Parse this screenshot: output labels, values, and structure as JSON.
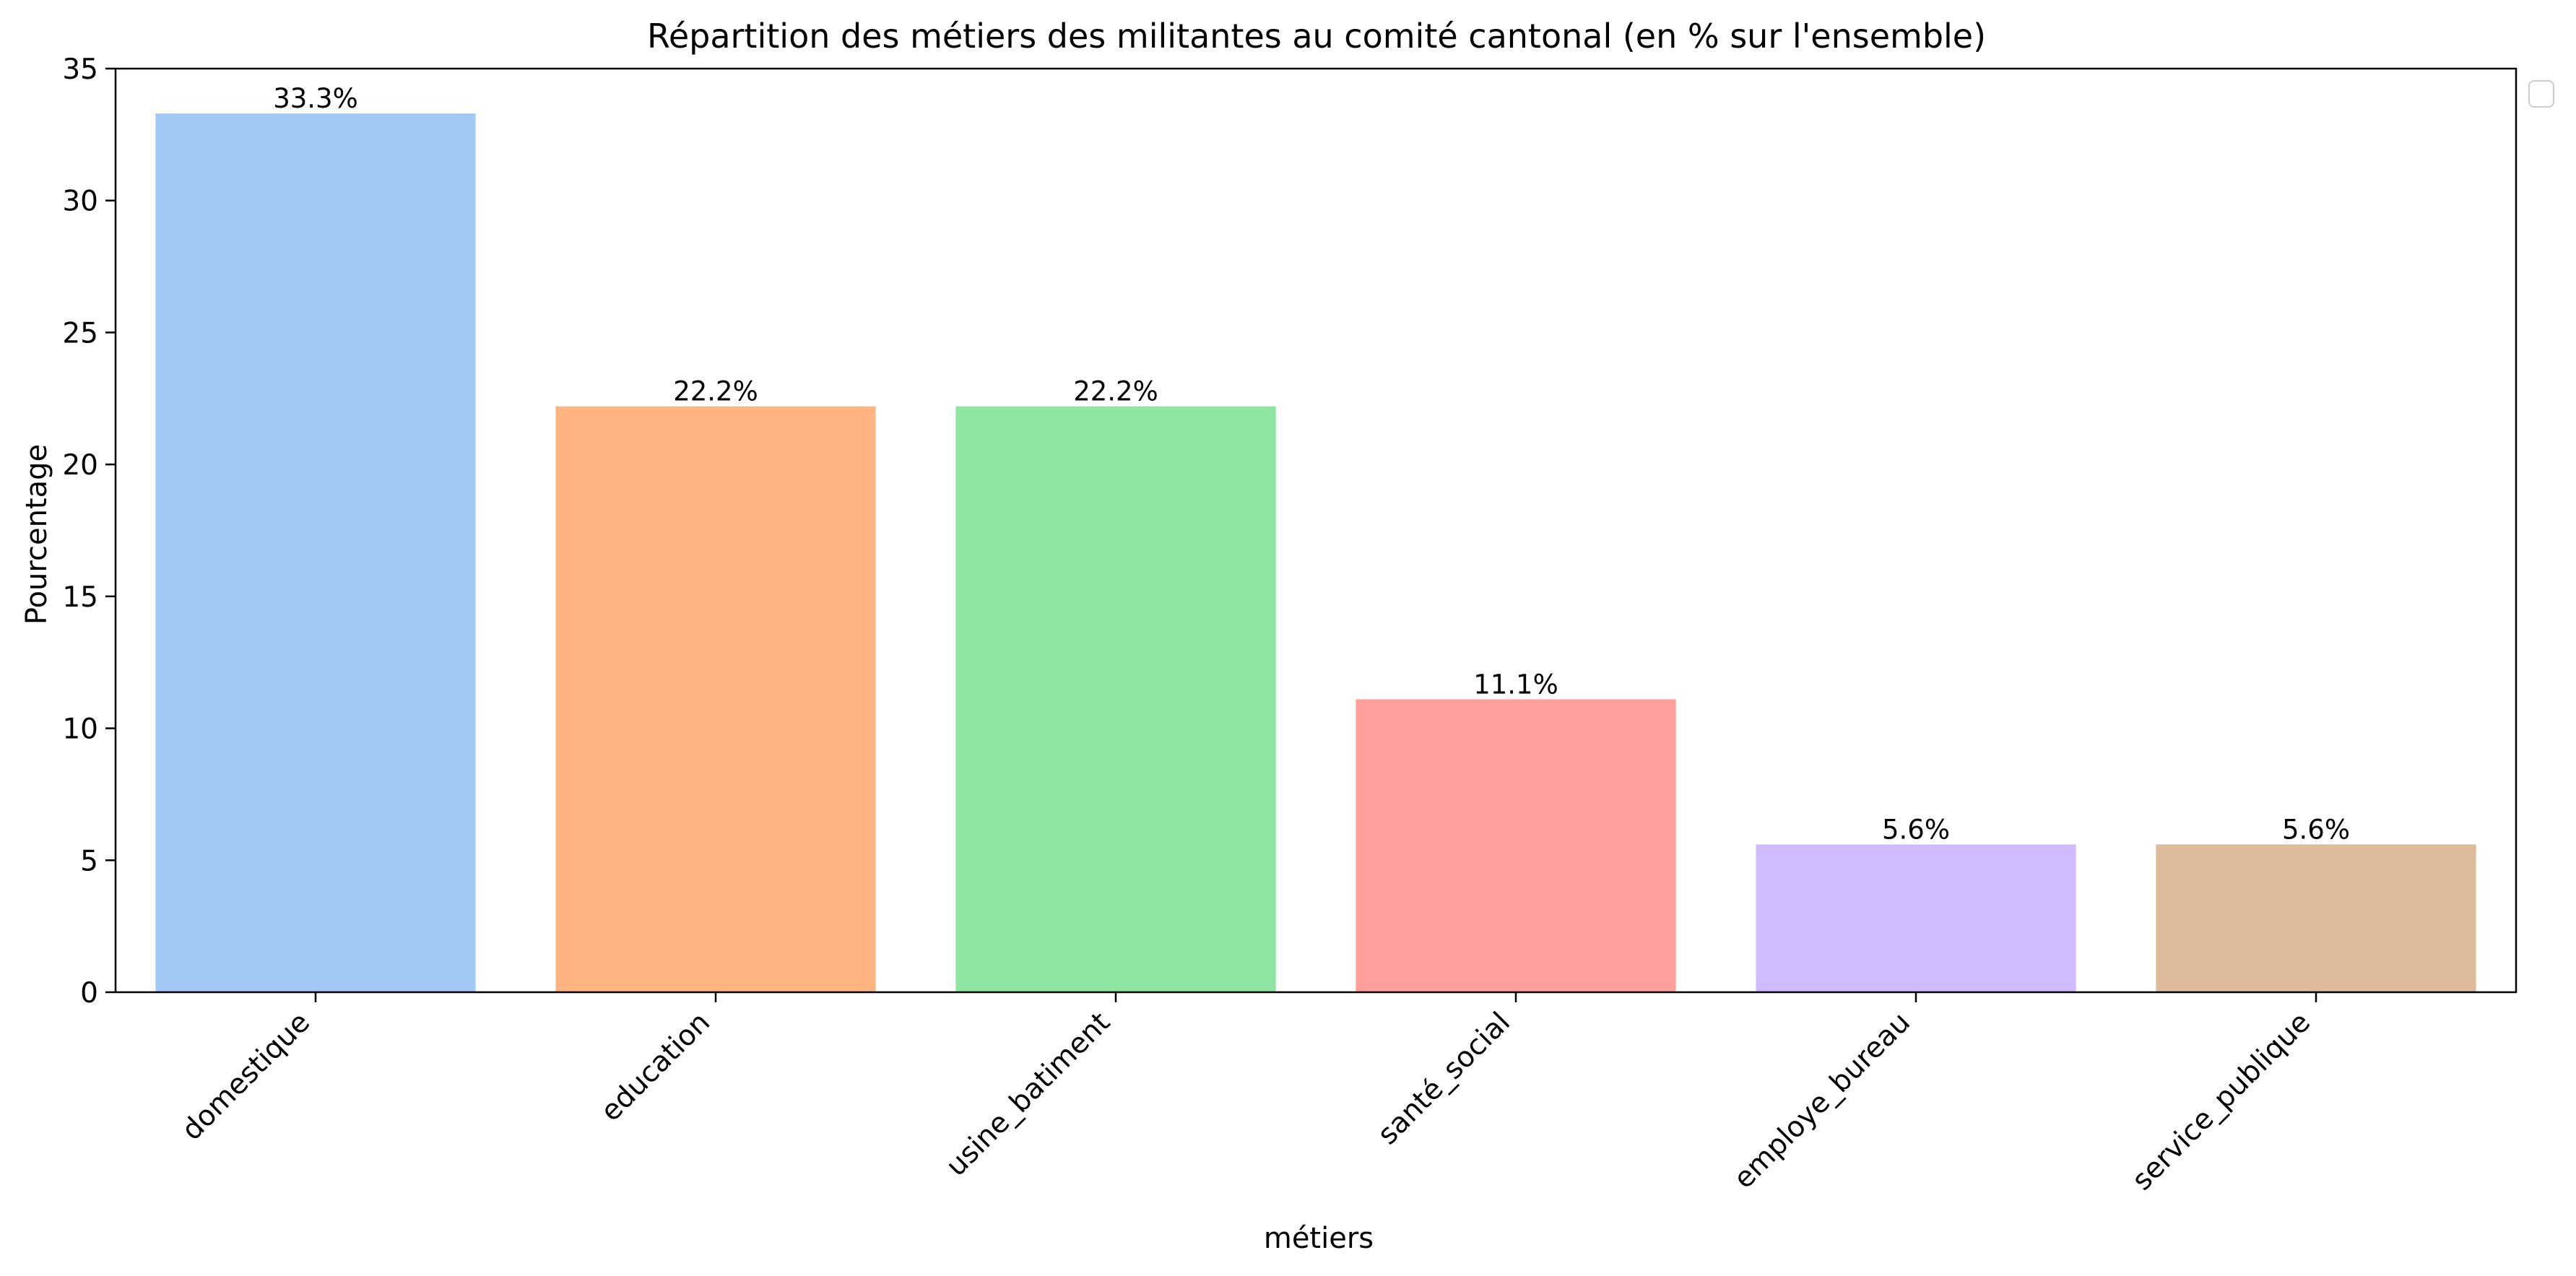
{
  "chart_data": {
    "type": "bar",
    "title": "Répartition des métiers des militantes au comité cantonal (en % sur l'ensemble)",
    "xlabel": "métiers",
    "ylabel": "Pourcentage",
    "categories": [
      "domestique",
      "education",
      "usine_batiment",
      "santé_social",
      "employe_bureau",
      "service_publique"
    ],
    "values": [
      33.3,
      22.2,
      22.2,
      11.1,
      5.6,
      5.6
    ],
    "value_labels": [
      "33.3%",
      "22.2%",
      "22.2%",
      "11.1%",
      "5.6%",
      "5.6%"
    ],
    "colors": [
      "#a1c9f4",
      "#ffb482",
      "#8de5a1",
      "#ff9f9b",
      "#d0bbff",
      "#debb9b"
    ],
    "ylim": [
      0,
      35
    ],
    "yticks": [
      0,
      5,
      10,
      15,
      20,
      25,
      30,
      35
    ],
    "grid": false,
    "legend": "top-right (empty)"
  }
}
